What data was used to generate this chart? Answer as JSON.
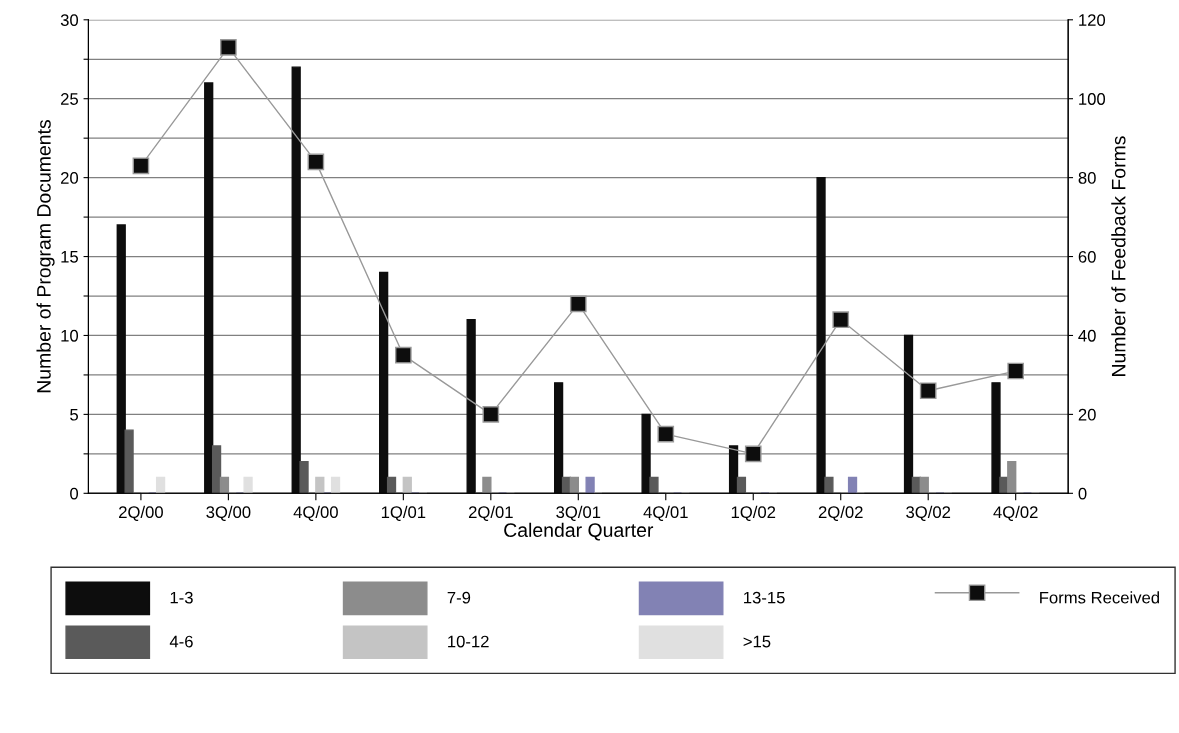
{
  "chart_data": {
    "type": "bar",
    "xlabel": "Calendar Quarter",
    "ylabel": "Number of Program Documents",
    "y2label": "Number of Feedback Forms",
    "categories": [
      "2Q/00",
      "3Q/00",
      "4Q/00",
      "1Q/01",
      "2Q/01",
      "3Q/01",
      "4Q/01",
      "1Q/02",
      "2Q/02",
      "3Q/02",
      "4Q/02"
    ],
    "series": [
      {
        "name": "1-3",
        "color": "#0d0d0d",
        "values": [
          17,
          26,
          27,
          14,
          11,
          7,
          5,
          3,
          20,
          10,
          7
        ]
      },
      {
        "name": "4-6",
        "color": "#5a5a5a",
        "values": [
          4,
          3,
          2,
          1,
          0,
          1,
          1,
          1,
          1,
          1,
          1
        ]
      },
      {
        "name": "7-9",
        "color": "#8c8c8c",
        "values": [
          0,
          1,
          0,
          0,
          1,
          1,
          0,
          0,
          0,
          1,
          2
        ]
      },
      {
        "name": "10-12",
        "color": "#c4c4c4",
        "values": [
          0,
          0,
          1,
          1,
          0,
          0,
          0,
          0,
          0,
          0,
          0
        ]
      },
      {
        "name": "13-15",
        "color": "#8282b4",
        "values": [
          0,
          0,
          0,
          0,
          0,
          1,
          0,
          0,
          1,
          0,
          0
        ]
      },
      {
        "name": ">15",
        "color": "#e0e0e0",
        "values": [
          1,
          1,
          1,
          0,
          0,
          0,
          0,
          0,
          0,
          0,
          0
        ]
      },
      {
        "name": "Forms Received",
        "type": "line",
        "axis": "y2",
        "color": "#0d0d0d",
        "marker": "square",
        "values": [
          83,
          113,
          84,
          35,
          20,
          48,
          15,
          10,
          44,
          26,
          31
        ]
      }
    ],
    "ylim": [
      0,
      30
    ],
    "yticks": [
      0,
      {
        "value": 2.5,
        "label": null
      },
      5,
      {
        "value": 7.5,
        "label": null
      },
      10,
      {
        "value": 12.5,
        "label": null
      },
      15,
      {
        "value": 17.5,
        "label": null
      },
      20,
      {
        "value": 22.5,
        "label": null
      },
      25,
      {
        "value": 27.5,
        "label": null
      },
      30
    ],
    "y2lim": [
      0,
      120
    ],
    "y2ticks": [
      0,
      20,
      40,
      60,
      80,
      100,
      120
    ],
    "grid": "y",
    "legend": "bottom"
  }
}
